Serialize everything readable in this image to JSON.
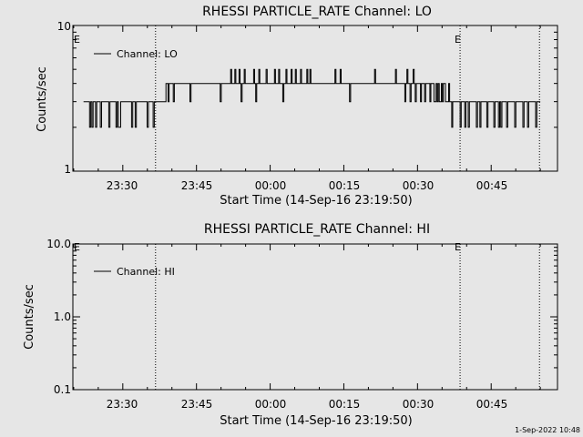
{
  "timestamp": "1-Sep-2022 10:48",
  "colors": {
    "background": "#e6e6e6",
    "ink": "#000000"
  },
  "chart_data": [
    {
      "type": "line",
      "title": "RHESSI PARTICLE_RATE Channel: LO",
      "xlabel": "Start Time (14-Sep-16 23:19:50)",
      "ylabel": "Counts/sec",
      "yscale": "log",
      "ylim": [
        1,
        10
      ],
      "ytick_labels": [
        "1",
        "10"
      ],
      "xlim": [
        "23:19:50",
        "00:58:30"
      ],
      "xtick_labels": [
        "23:30",
        "23:45",
        "00:00",
        "00:15",
        "00:30",
        "00:45"
      ],
      "legend": {
        "label": "Channel: LO",
        "placement": "top-left"
      },
      "event_markers": [
        {
          "time": "23:36:40",
          "label": ""
        },
        {
          "time": "00:38:40",
          "label": "E"
        },
        {
          "time": "00:54:50",
          "label": ""
        }
      ],
      "left_marker_label": "E",
      "series": [
        {
          "name": "Channel: LO",
          "segments": [
            {
              "start": "23:22:00",
              "end": "23:36:40",
              "levels": [
                3,
                3,
                3,
                3,
                3,
                2,
                3,
                2,
                3,
                3,
                2,
                3,
                3,
                3,
                2,
                3,
                3,
                3,
                3,
                3,
                3,
                2,
                3,
                3,
                3,
                3,
                3,
                2,
                3,
                2,
                2,
                3,
                3,
                3,
                3,
                3,
                3,
                3,
                3,
                3,
                2,
                3,
                3,
                2,
                3,
                3,
                3,
                3,
                3,
                3,
                3,
                3,
                3,
                2,
                3,
                3,
                3,
                3,
                2,
                3
              ]
            },
            {
              "start": "23:36:40",
              "end": "00:38:40",
              "levels": [
                3,
                3,
                3,
                3,
                3,
                3,
                3,
                3,
                3,
                3,
                4,
                4,
                3,
                4,
                4,
                4,
                4,
                3,
                4,
                4,
                4,
                4,
                4,
                4,
                4,
                4,
                4,
                4,
                4,
                4,
                4,
                4,
                4,
                3,
                4,
                4,
                4,
                4,
                4,
                4,
                4,
                4,
                4,
                4,
                4,
                4,
                4,
                4,
                4,
                4,
                4,
                4,
                4,
                4,
                4,
                4,
                4,
                4,
                4,
                4,
                4,
                4,
                3,
                4,
                4,
                4,
                4,
                4,
                4,
                4,
                4,
                4,
                5,
                4,
                4,
                4,
                5,
                4,
                4,
                4,
                5,
                4,
                3,
                4,
                4,
                5,
                4,
                4,
                4,
                4,
                4,
                4,
                4,
                4,
                5,
                4,
                3,
                4,
                4,
                5,
                4,
                4,
                4,
                4,
                4,
                4,
                5,
                4,
                4,
                4,
                4,
                4,
                4,
                4,
                5,
                4,
                4,
                4,
                5,
                4,
                4,
                4,
                3,
                4,
                4,
                5,
                4,
                4,
                4,
                4,
                5,
                4,
                4,
                4,
                5,
                4,
                4,
                4,
                4,
                5,
                4,
                4,
                4,
                4,
                4,
                5,
                4,
                4,
                5,
                4,
                4,
                4,
                4,
                4,
                4,
                4,
                4,
                4,
                4,
                4,
                4,
                4,
                4,
                4,
                4,
                4,
                4,
                4,
                4,
                4,
                4,
                4,
                5,
                4,
                4,
                4,
                4,
                5,
                4,
                4,
                4,
                4,
                4,
                4,
                4,
                4,
                3,
                4,
                4,
                4,
                4,
                4,
                4,
                4,
                4,
                4,
                4,
                4,
                4,
                4,
                4,
                4,
                4,
                4,
                4,
                4,
                4,
                4,
                4,
                4,
                5,
                4,
                4,
                4,
                4,
                4,
                4,
                4,
                4,
                4,
                4,
                4,
                4,
                4,
                4,
                4,
                4,
                4,
                4,
                4,
                5,
                4,
                4,
                4,
                4,
                4,
                4,
                4,
                4,
                3,
                4,
                5,
                4,
                4,
                3,
                4,
                4,
                5,
                4,
                3,
                4,
                4,
                4,
                4,
                3,
                4,
                4,
                4,
                3,
                4,
                4,
                4,
                4,
                3,
                4,
                4,
                4,
                3,
                3,
                4,
                3,
                4,
                3,
                3,
                4,
                3,
                4,
                4,
                3,
                3,
                3,
                4,
                3,
                3,
                2,
                3,
                3,
                3,
                3,
                3,
                3,
                3
              ]
            },
            {
              "start": "00:38:40",
              "end": "00:55:00",
              "levels": [
                2,
                3,
                3,
                3,
                2,
                3,
                3,
                2,
                3,
                3,
                3,
                3,
                3,
                3,
                2,
                3,
                3,
                2,
                3,
                3,
                3,
                3,
                3,
                2,
                3,
                3,
                3,
                3,
                3,
                2,
                3,
                3,
                3,
                2,
                3,
                2,
                3,
                3,
                3,
                3,
                2,
                3,
                3,
                3,
                3,
                3,
                3,
                2,
                3,
                3,
                3,
                3,
                3,
                3,
                2,
                3,
                3,
                3,
                2,
                3,
                3,
                3,
                3,
                3,
                3,
                2,
                3,
                3,
                3
              ]
            }
          ]
        }
      ]
    },
    {
      "type": "line",
      "title": "RHESSI PARTICLE_RATE Channel: HI",
      "xlabel": "Start Time (14-Sep-16 23:19:50)",
      "ylabel": "Counts/sec",
      "yscale": "log",
      "ylim": [
        0.1,
        10
      ],
      "ytick_labels": [
        "0.1",
        "1.0",
        "10.0"
      ],
      "xlim": [
        "23:19:50",
        "00:58:30"
      ],
      "xtick_labels": [
        "23:30",
        "23:45",
        "00:00",
        "00:15",
        "00:30",
        "00:45"
      ],
      "legend": {
        "label": "Channel: HI",
        "placement": "top-left"
      },
      "event_markers": [
        {
          "time": "23:36:40",
          "label": ""
        },
        {
          "time": "00:38:40",
          "label": "E"
        },
        {
          "time": "00:54:50",
          "label": ""
        }
      ],
      "left_marker_label": "E",
      "series": [
        {
          "name": "Channel: HI",
          "segments": []
        }
      ]
    }
  ]
}
